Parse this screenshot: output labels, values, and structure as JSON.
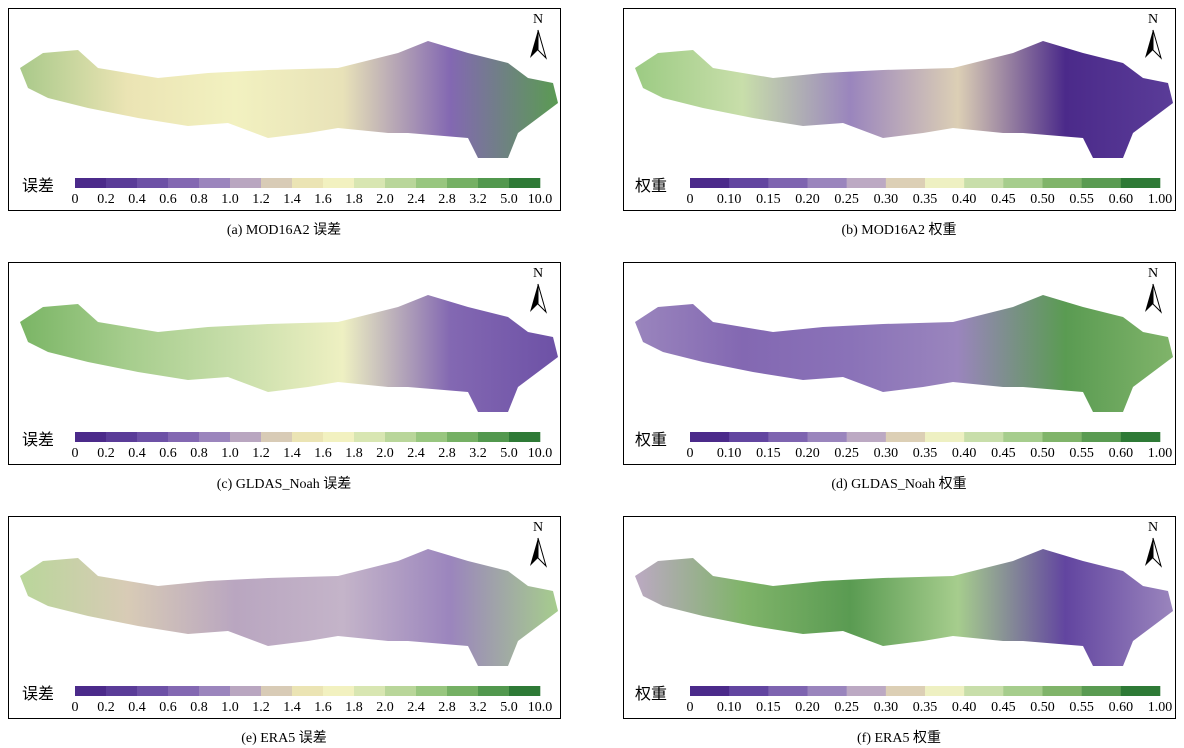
{
  "panels": [
    {
      "caption": "(a) MOD16A2 误差",
      "north": "N",
      "legend_title": "误差",
      "legend_labels": [
        "0",
        "0.2",
        "0.4",
        "0.6",
        "0.8",
        "1.0",
        "1.2",
        "1.4",
        "1.6",
        "1.8",
        "2.0",
        "2.4",
        "2.8",
        "3.2",
        "5.0",
        "10.0"
      ],
      "legend_colors": [
        "#4b2a8a",
        "#5a3c98",
        "#6d51a6",
        "#8368b2",
        "#9b85bd",
        "#b9a6c0",
        "#d8cbb6",
        "#ebe4b4",
        "#f2f1c0",
        "#d8e6b2",
        "#b9d69a",
        "#98c67f",
        "#75b064",
        "#52984e",
        "#2e7a36"
      ]
    },
    {
      "caption": "(b) MOD16A2 权重",
      "north": "N",
      "legend_title": "权重",
      "legend_labels": [
        "0",
        "0.10",
        "0.15",
        "0.20",
        "0.25",
        "0.30",
        "0.35",
        "0.40",
        "0.45",
        "0.50",
        "0.55",
        "0.60",
        "1.00"
      ],
      "legend_colors": [
        "#4b2a8a",
        "#6245a0",
        "#7e64b0",
        "#9a85bd",
        "#bca9c3",
        "#dccfb5",
        "#eef0c2",
        "#c8deaa",
        "#a6cd8d",
        "#80b46a",
        "#5a9b52",
        "#2e7a36"
      ]
    },
    {
      "caption": "(c) GLDAS_Noah 误差",
      "north": "N",
      "legend_title": "误差",
      "legend_labels": [
        "0",
        "0.2",
        "0.4",
        "0.6",
        "0.8",
        "1.0",
        "1.2",
        "1.4",
        "1.6",
        "1.8",
        "2.0",
        "2.4",
        "2.8",
        "3.2",
        "5.0",
        "10.0"
      ],
      "legend_colors": [
        "#4b2a8a",
        "#5a3c98",
        "#6d51a6",
        "#8368b2",
        "#9b85bd",
        "#b9a6c0",
        "#d8cbb6",
        "#ebe4b4",
        "#f2f1c0",
        "#d8e6b2",
        "#b9d69a",
        "#98c67f",
        "#75b064",
        "#52984e",
        "#2e7a36"
      ]
    },
    {
      "caption": "(d) GLDAS_Noah 权重",
      "north": "N",
      "legend_title": "权重",
      "legend_labels": [
        "0",
        "0.10",
        "0.15",
        "0.20",
        "0.25",
        "0.30",
        "0.35",
        "0.40",
        "0.45",
        "0.50",
        "0.55",
        "0.60",
        "1.00"
      ],
      "legend_colors": [
        "#4b2a8a",
        "#6245a0",
        "#7e64b0",
        "#9a85bd",
        "#bca9c3",
        "#dccfb5",
        "#eef0c2",
        "#c8deaa",
        "#a6cd8d",
        "#80b46a",
        "#5a9b52",
        "#2e7a36"
      ]
    },
    {
      "caption": "(e) ERA5 误差",
      "north": "N",
      "legend_title": "误差",
      "legend_labels": [
        "0",
        "0.2",
        "0.4",
        "0.6",
        "0.8",
        "1.0",
        "1.2",
        "1.4",
        "1.6",
        "1.8",
        "2.0",
        "2.4",
        "2.8",
        "3.2",
        "5.0",
        "10.0"
      ],
      "legend_colors": [
        "#4b2a8a",
        "#5a3c98",
        "#6d51a6",
        "#8368b2",
        "#9b85bd",
        "#b9a6c0",
        "#d8cbb6",
        "#ebe4b4",
        "#f2f1c0",
        "#d8e6b2",
        "#b9d69a",
        "#98c67f",
        "#75b064",
        "#52984e",
        "#2e7a36"
      ]
    },
    {
      "caption": "(f) ERA5 权重",
      "north": "N",
      "legend_title": "权重",
      "legend_labels": [
        "0",
        "0.10",
        "0.15",
        "0.20",
        "0.25",
        "0.30",
        "0.35",
        "0.40",
        "0.45",
        "0.50",
        "0.55",
        "0.60",
        "1.00"
      ],
      "legend_colors": [
        "#4b2a8a",
        "#6245a0",
        "#7e64b0",
        "#9a85bd",
        "#bca9c3",
        "#dccfb5",
        "#eef0c2",
        "#c8deaa",
        "#a6cd8d",
        "#80b46a",
        "#5a9b52",
        "#2e7a36"
      ]
    }
  ]
}
